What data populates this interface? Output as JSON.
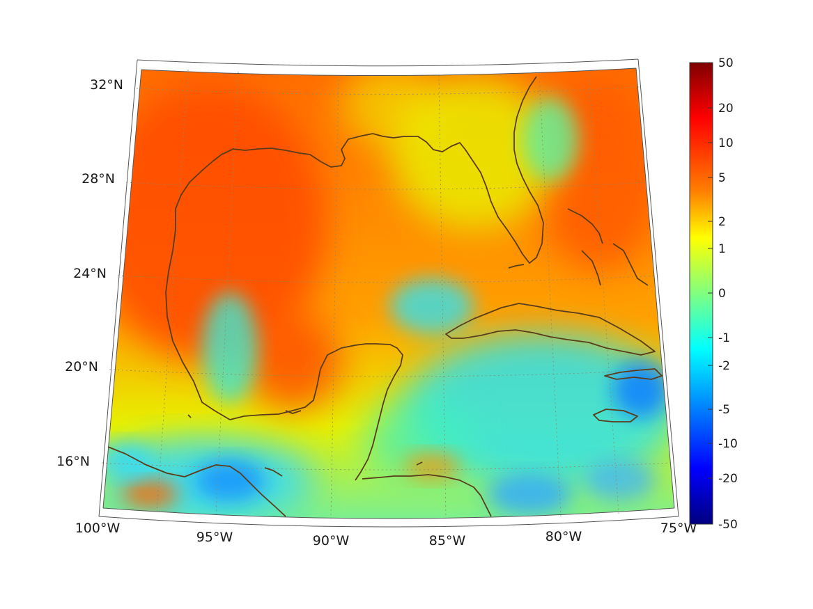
{
  "map": {
    "lat_labels": [
      "32°N",
      "28°N",
      "24°N",
      "20°N",
      "16°N"
    ],
    "lon_labels": [
      "100°W",
      "95°W",
      "90°W",
      "85°W",
      "80°W",
      "75°W"
    ],
    "extent": {
      "lon_min": -100,
      "lon_max": -75,
      "lat_min": 14,
      "lat_max": 33
    }
  },
  "colorbar": {
    "tick_labels": [
      "50",
      "20",
      "10",
      "5",
      "2",
      "1",
      "0",
      "-1",
      "-2",
      "-5",
      "-10",
      "-20",
      "-50"
    ],
    "colormap": "jet",
    "top_color": "#800000",
    "bottom_color": "#00007f"
  },
  "colors": {
    "coastline": "#5a3c1a",
    "frame": "#555555",
    "grid": "#8a8a6a"
  }
}
